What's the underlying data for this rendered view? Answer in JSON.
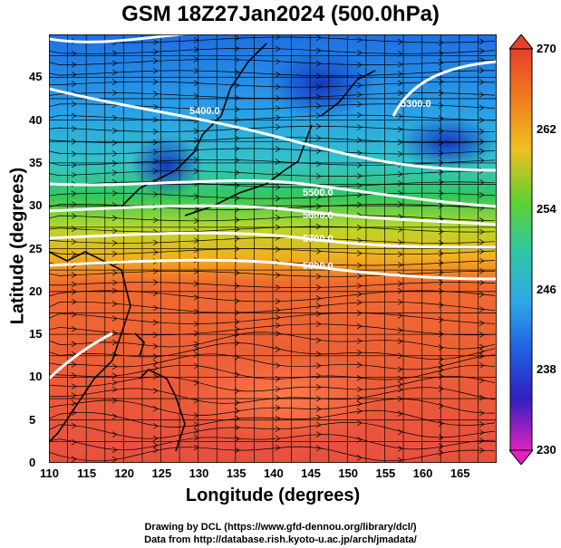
{
  "title": "GSM 18Z27Jan2024 (500.0hPa)",
  "xaxis": {
    "label": "Longitude (degrees)",
    "ticks": [
      "110",
      "115",
      "120",
      "125",
      "130",
      "135",
      "140",
      "145",
      "150",
      "155",
      "160",
      "165"
    ],
    "range": [
      110,
      170
    ]
  },
  "yaxis": {
    "label": "Latitude  (degrees)",
    "ticks": [
      "0",
      "5",
      "10",
      "15",
      "20",
      "25",
      "30",
      "35",
      "40",
      "45"
    ],
    "range": [
      0,
      50
    ]
  },
  "colorbar": {
    "ticks": [
      "270",
      "262",
      "254",
      "246",
      "238",
      "230"
    ],
    "range": [
      230,
      270
    ]
  },
  "contour_labels": [
    "5400.0",
    "5300.0",
    "5500.0",
    "5600.0",
    "5700.0",
    "5800.0"
  ],
  "credits": [
    "Drawing by DCL (https://www.gfd-dennou.org/library/dcl/)",
    "Data from http://database.rish.kyoto-u.ac.jp/arch/jmadata/"
  ]
}
